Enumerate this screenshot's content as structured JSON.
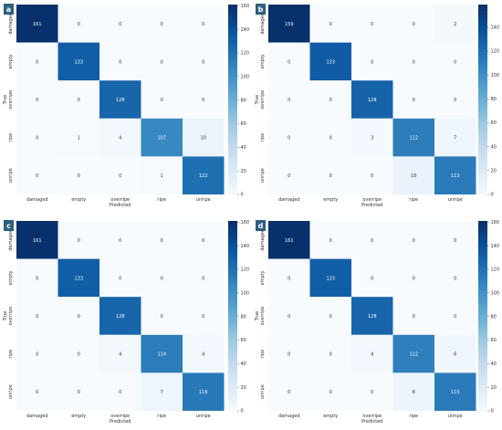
{
  "chart_data": [
    {
      "type": "heatmap",
      "panel_label": "a",
      "xlabel": "Predicted",
      "ylabel": "True",
      "categories": [
        "damaged",
        "empty",
        "overripe",
        "ripe",
        "unripe"
      ],
      "matrix": [
        [
          161,
          0,
          0,
          0,
          0
        ],
        [
          0,
          133,
          0,
          0,
          0
        ],
        [
          0,
          0,
          128,
          0,
          0
        ],
        [
          0,
          1,
          4,
          107,
          10
        ],
        [
          0,
          0,
          0,
          1,
          122
        ]
      ],
      "colorbar": {
        "ticks": [
          0,
          20,
          40,
          60,
          80,
          100,
          120,
          140,
          160
        ],
        "range": [
          0,
          161
        ]
      }
    },
    {
      "type": "heatmap",
      "panel_label": "b",
      "xlabel": "Predicted",
      "ylabel": "True",
      "categories": [
        "damaged",
        "empty",
        "overripe",
        "ripe",
        "unripe"
      ],
      "matrix": [
        [
          159,
          0,
          0,
          0,
          2
        ],
        [
          0,
          133,
          0,
          0,
          0
        ],
        [
          0,
          0,
          128,
          0,
          0
        ],
        [
          0,
          0,
          3,
          112,
          7
        ],
        [
          0,
          0,
          0,
          10,
          113
        ]
      ],
      "colorbar": {
        "ticks": [
          0,
          20,
          40,
          60,
          80,
          100,
          120,
          140
        ],
        "range": [
          0,
          159
        ]
      }
    },
    {
      "type": "heatmap",
      "panel_label": "c",
      "xlabel": "Predicted",
      "ylabel": "True",
      "categories": [
        "damaged",
        "empty",
        "overripe",
        "ripe",
        "unripe"
      ],
      "matrix": [
        [
          161,
          0,
          0,
          0,
          0
        ],
        [
          0,
          133,
          0,
          0,
          0
        ],
        [
          0,
          0,
          128,
          0,
          0
        ],
        [
          0,
          0,
          4,
          114,
          4
        ],
        [
          0,
          0,
          0,
          7,
          116
        ]
      ],
      "colorbar": {
        "ticks": [
          0,
          20,
          40,
          60,
          80,
          100,
          120,
          140,
          160
        ],
        "range": [
          0,
          161
        ]
      }
    },
    {
      "type": "heatmap",
      "panel_label": "d",
      "xlabel": "Predicted",
      "ylabel": "True",
      "categories": [
        "damaged",
        "empty",
        "overripe",
        "ripe",
        "unripe"
      ],
      "matrix": [
        [
          161,
          0,
          0,
          0,
          0
        ],
        [
          0,
          133,
          0,
          0,
          0
        ],
        [
          0,
          0,
          128,
          0,
          0
        ],
        [
          0,
          0,
          4,
          112,
          6
        ],
        [
          0,
          0,
          0,
          8,
          115
        ]
      ],
      "colorbar": {
        "ticks": [
          0,
          20,
          40,
          60,
          80,
          100,
          120,
          140,
          160
        ],
        "range": [
          0,
          161
        ]
      }
    }
  ],
  "colors": {
    "scale": [
      "#f7fbff",
      "#deebf7",
      "#c6dbef",
      "#9ecae1",
      "#6baed6",
      "#4292c6",
      "#2171b5",
      "#08519c",
      "#08306b"
    ],
    "panel_label_bg": "#2d5f7e",
    "panel_label_text": "#ffffff"
  }
}
